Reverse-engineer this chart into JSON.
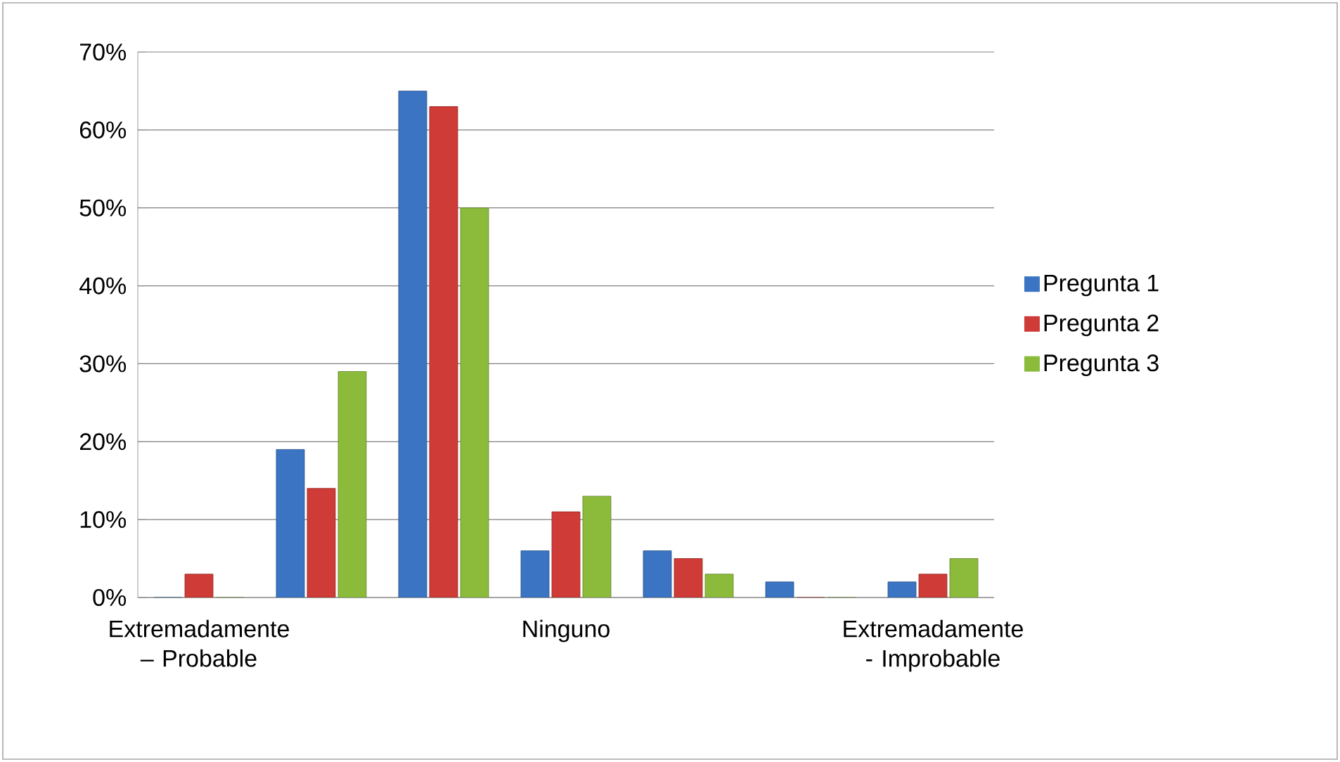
{
  "chart_data": {
    "type": "bar",
    "categories": [
      "Extremadamente – Probable",
      null,
      null,
      "Ninguno",
      null,
      null,
      "Extremadamente - Improbable"
    ],
    "series": [
      {
        "name": "Pregunta 1",
        "color": "#3a74c2",
        "values": [
          0,
          19,
          65,
          6,
          6,
          2,
          2
        ]
      },
      {
        "name": "Pregunta 2",
        "color": "#cf3b36",
        "values": [
          3,
          14,
          63,
          11,
          5,
          0,
          3
        ]
      },
      {
        "name": "Pregunta 3",
        "color": "#8cbb3c",
        "values": [
          0,
          29,
          50,
          13,
          3,
          0,
          5
        ]
      }
    ],
    "ylim": [
      0,
      70
    ],
    "yticks": [
      {
        "value": 0,
        "label": "0%"
      },
      {
        "value": 10,
        "label": "10%"
      },
      {
        "value": 20,
        "label": "20%"
      },
      {
        "value": 30,
        "label": "30%"
      },
      {
        "value": 40,
        "label": "40%"
      },
      {
        "value": 50,
        "label": "50%"
      },
      {
        "value": 60,
        "label": "60%"
      },
      {
        "value": 70,
        "label": "70%"
      }
    ],
    "grid": "y",
    "legend": "right"
  }
}
